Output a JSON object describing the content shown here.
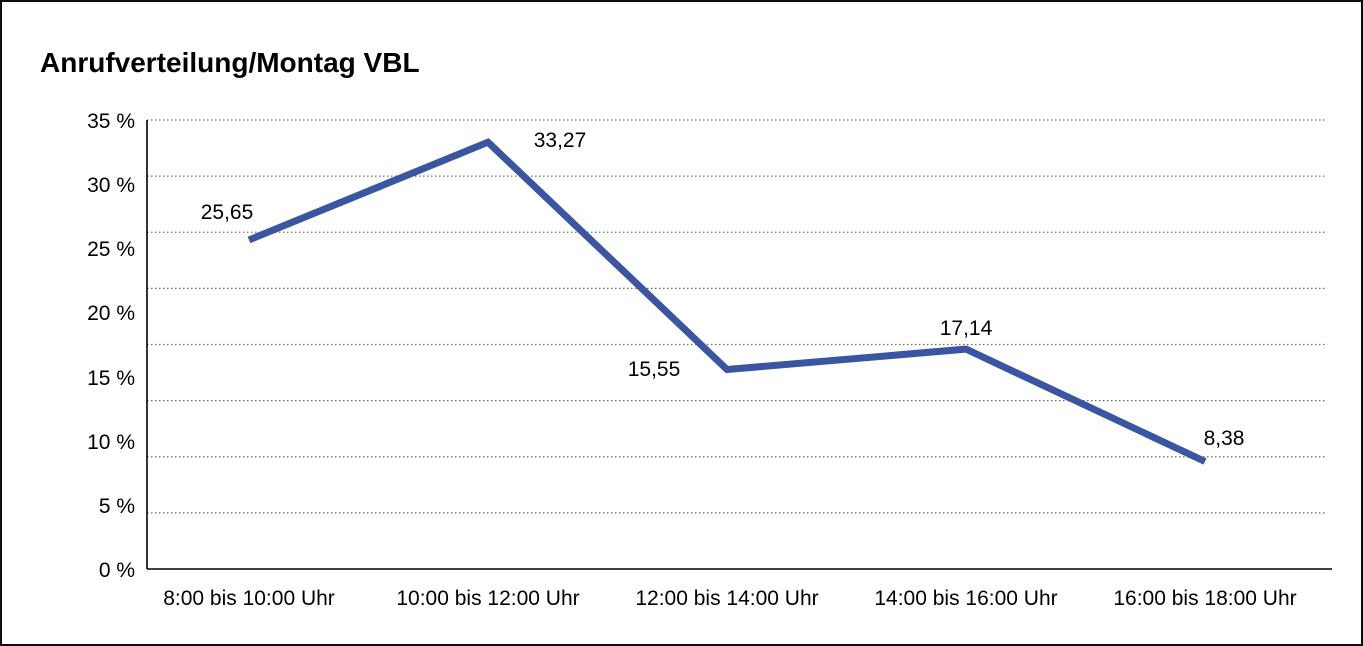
{
  "chart_data": {
    "type": "line",
    "title": "Anrufverteilung/Montag VBL",
    "categories": [
      "8:00 bis 10:00 Uhr",
      "10:00 bis 12:00 Uhr",
      "12:00 bis 14:00 Uhr",
      "14:00 bis 16:00 Uhr",
      "16:00 bis 18:00 Uhr"
    ],
    "values": [
      25.65,
      33.27,
      15.55,
      17.14,
      8.38
    ],
    "point_labels": [
      "25,65",
      "33,27",
      "15,55",
      "17,14",
      "8,38"
    ],
    "y_tick_labels": [
      "35 %",
      "30 %",
      "25 %",
      "20 %",
      "15 %",
      "10 %",
      "5 %",
      "0 %"
    ],
    "y_tick_values": [
      35,
      30,
      25,
      20,
      15,
      10,
      5,
      0
    ],
    "ylim": [
      0,
      35
    ],
    "xlabel": "",
    "ylabel": "",
    "legend": "none",
    "grid": "horizontal-dotted-8-divisions",
    "markers": "none",
    "line_color": "#3A55A1",
    "axis_color": "#000000",
    "grid_color": "#6e6e6e",
    "background_color": "#ffffff",
    "border_color": "#0d0d0d"
  }
}
